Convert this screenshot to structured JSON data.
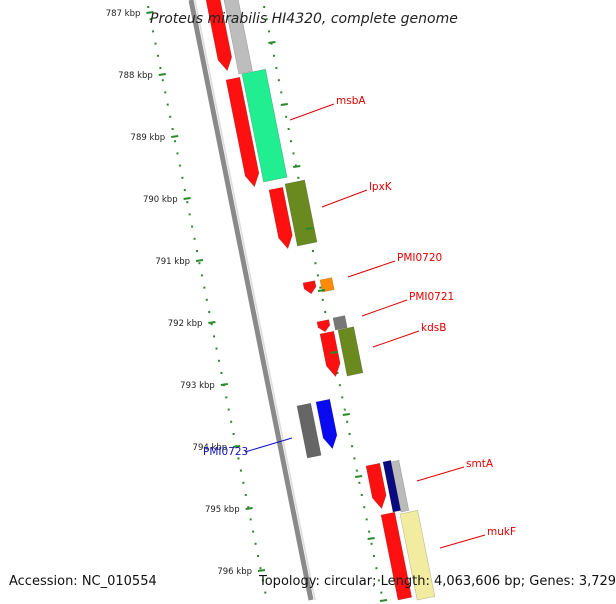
{
  "title": "Proteus mirabilis HI4320, complete genome",
  "accession": "Accession: NC_010554",
  "summary": "Topology: circular; Length: 4,063,606 bp; Genes: 3,729",
  "ticks": [
    "787 kbp",
    "788 kbp",
    "789 kbp",
    "790 kbp",
    "791 kbp",
    "792 kbp",
    "793 kbp",
    "794 kbp",
    "795 kbp",
    "796 kbp"
  ],
  "gene_labels": [
    {
      "id": "msbA",
      "text": "msbA",
      "color": "#e00000"
    },
    {
      "id": "lpxK",
      "text": "lpxK",
      "color": "#e00000"
    },
    {
      "id": "PMI0720",
      "text": "PMI0720",
      "color": "#e00000"
    },
    {
      "id": "PMI0721",
      "text": "PMI0721",
      "color": "#e00000"
    },
    {
      "id": "kdsB",
      "text": "kdsB",
      "color": "#e00000"
    },
    {
      "id": "PMI0723",
      "text": "PMI0723",
      "color": "#1010c0"
    },
    {
      "id": "smtA",
      "text": "smtA",
      "color": "#e00000"
    },
    {
      "id": "mukF",
      "text": "mukF",
      "color": "#e00000"
    }
  ],
  "colors": {
    "backbone": "#8a8a8a",
    "tick_dots": "#2a8a2a",
    "cds_red": "#ff1010",
    "msbA_cog": "#20ee90",
    "lpxK_cog": "#6a8a20",
    "pmi0720_cog": "#ff8c00",
    "pmi0721_cog": "#777777",
    "kdsB_cog": "#6a8a20",
    "pmi0723_cds": "#0a0af0",
    "pmi0723_cog": "#666666",
    "smtA_cog": "#0a0a80",
    "mukF_cog": "#f2eca0",
    "top_cog": "#bdbdbd"
  }
}
